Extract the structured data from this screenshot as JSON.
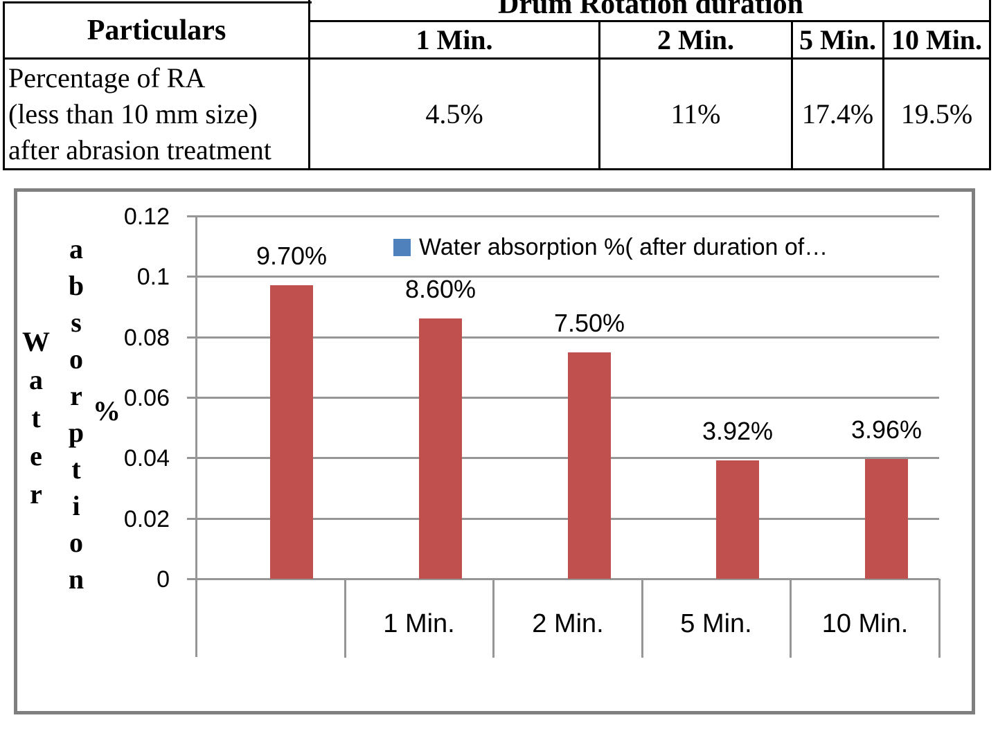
{
  "table": {
    "particulars_header": "Particulars",
    "group_header": "Drum Rotation duration",
    "col_headers": [
      "1 Min.",
      "2 Min.",
      "5 Min.",
      "10 Min."
    ],
    "row_label_lines": [
      "Percentage of RA",
      "(less than 10 mm size)",
      "after abrasion treatment"
    ],
    "row_values": [
      "4.5%",
      "11%",
      "17.4%",
      "19.5%"
    ]
  },
  "chart_data": {
    "type": "bar",
    "title": "",
    "categories": [
      "",
      "1 Min.",
      "2 Min.",
      "5 Min.",
      "10 Min."
    ],
    "values": [
      0.097,
      0.086,
      0.075,
      0.0392,
      0.0396
    ],
    "value_labels": [
      "9.70%",
      "8.60%",
      "7.50%",
      "3.92%",
      "3.96%"
    ],
    "series_name": "Water absorption %( after duration of…",
    "legend": "Water absorption %( after duration of…",
    "ylabel": "Water absorption %",
    "xlabel": "",
    "ylim": [
      0,
      0.12
    ],
    "yticks": [
      0.12,
      0.1,
      0.08,
      0.06,
      0.04,
      0.02,
      0
    ],
    "ytick_labels": [
      "0.12",
      "0.1",
      "0.08",
      "0.06",
      "0.04",
      "0.02",
      "0"
    ],
    "grid": true,
    "legend_position": "top-inside",
    "bar_color": "#C0504D",
    "legend_marker_color": "#4F81BD",
    "gridline_color": "#969696"
  }
}
